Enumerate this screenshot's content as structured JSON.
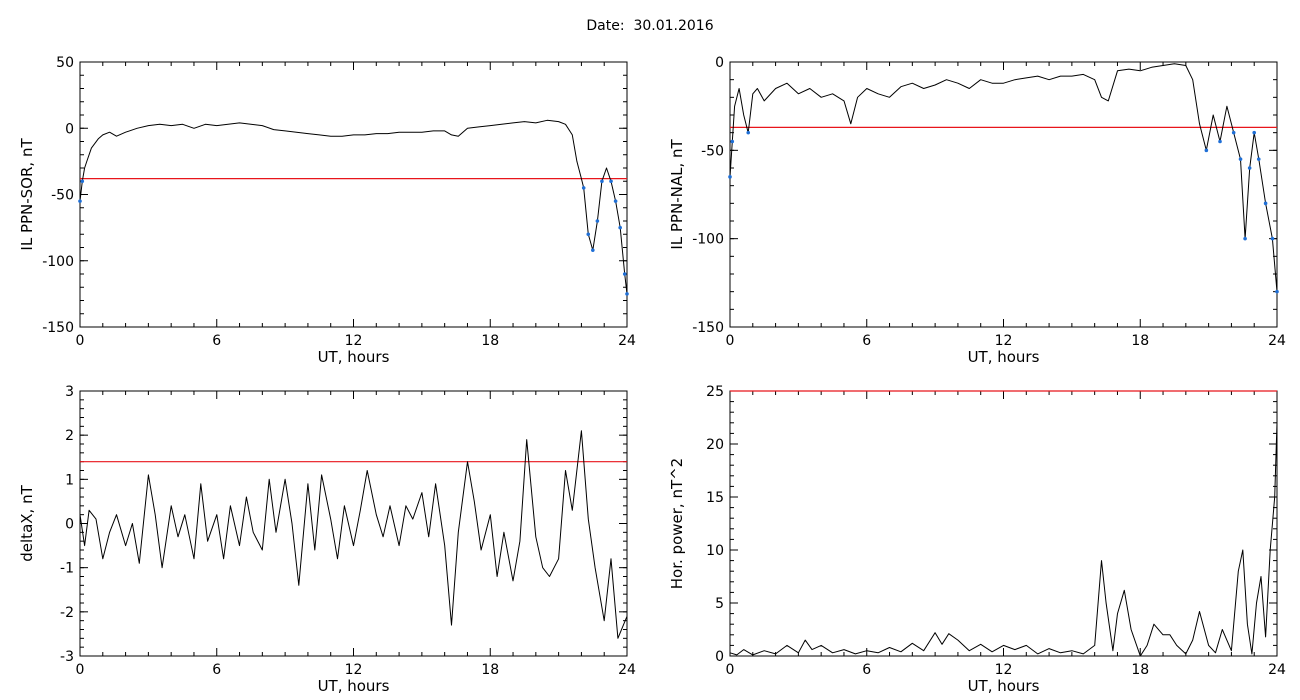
{
  "header": {
    "date_label": "Date:",
    "date_value": "30.01.2016"
  },
  "chart_data": [
    {
      "type": "line",
      "id": "sor",
      "xlabel": "UT, hours",
      "ylabel": "IL PPN-SOR, nT",
      "xlim": [
        0,
        24
      ],
      "ylim": [
        -150,
        50
      ],
      "xticks": [
        0,
        6,
        12,
        18,
        24
      ],
      "yticks": [
        -150,
        -100,
        -50,
        0,
        50
      ],
      "threshold": -38,
      "series": [
        {
          "x": [
            0,
            0.1,
            0.2,
            0.3,
            0.5,
            0.8,
            1,
            1.3,
            1.6,
            2,
            2.5,
            3,
            3.5,
            4,
            4.5,
            5,
            5.5,
            6,
            6.5,
            7,
            7.5,
            8,
            8.5,
            9,
            9.5,
            10,
            10.5,
            11,
            11.5,
            12,
            12.5,
            13,
            13.5,
            14,
            14.5,
            15,
            15.5,
            16,
            16.3,
            16.6,
            17,
            17.5,
            18,
            18.5,
            19,
            19.5,
            20,
            20.5,
            21,
            21.3,
            21.6,
            21.8,
            22,
            22.1,
            22.3,
            22.5,
            22.7,
            22.9,
            23.1,
            23.3,
            23.5,
            23.7,
            23.9,
            24
          ],
          "values": [
            -55,
            -40,
            -30,
            -25,
            -15,
            -8,
            -5,
            -3,
            -6,
            -3,
            0,
            2,
            3,
            2,
            3,
            0,
            3,
            2,
            3,
            4,
            3,
            2,
            -1,
            -2,
            -3,
            -4,
            -5,
            -6,
            -6,
            -5,
            -5,
            -4,
            -4,
            -3,
            -3,
            -3,
            -2,
            -2,
            -5,
            -6,
            0,
            1,
            2,
            3,
            4,
            5,
            4,
            6,
            5,
            3,
            -5,
            -25,
            -38,
            -45,
            -80,
            -92,
            -70,
            -40,
            -30,
            -40,
            -55,
            -75,
            -110,
            -125
          ]
        }
      ]
    },
    {
      "type": "line",
      "id": "nal",
      "xlabel": "UT, hours",
      "ylabel": "IL PPN-NAL, nT",
      "xlim": [
        0,
        24
      ],
      "ylim": [
        -150,
        0
      ],
      "xticks": [
        0,
        6,
        12,
        18,
        24
      ],
      "yticks": [
        -150,
        -100,
        -50,
        0
      ],
      "threshold": -37,
      "series": [
        {
          "x": [
            0,
            0.1,
            0.2,
            0.4,
            0.6,
            0.8,
            1,
            1.2,
            1.5,
            2,
            2.5,
            3,
            3.5,
            4,
            4.5,
            5,
            5.3,
            5.6,
            6,
            6.5,
            7,
            7.5,
            8,
            8.5,
            9,
            9.5,
            10,
            10.5,
            11,
            11.5,
            12,
            12.5,
            13,
            13.5,
            14,
            14.5,
            15,
            15.5,
            16,
            16.3,
            16.6,
            17,
            17.5,
            18,
            18.5,
            19,
            19.5,
            20,
            20.3,
            20.6,
            20.9,
            21.2,
            21.5,
            21.8,
            22.1,
            22.4,
            22.6,
            22.8,
            23,
            23.2,
            23.5,
            23.8,
            24
          ],
          "values": [
            -65,
            -45,
            -25,
            -15,
            -30,
            -40,
            -18,
            -15,
            -22,
            -15,
            -12,
            -18,
            -15,
            -20,
            -18,
            -22,
            -35,
            -20,
            -15,
            -18,
            -20,
            -14,
            -12,
            -15,
            -13,
            -10,
            -12,
            -15,
            -10,
            -12,
            -12,
            -10,
            -9,
            -8,
            -10,
            -8,
            -8,
            -7,
            -10,
            -20,
            -22,
            -5,
            -4,
            -5,
            -3,
            -2,
            -1,
            -2,
            -10,
            -35,
            -50,
            -30,
            -45,
            -25,
            -40,
            -55,
            -100,
            -60,
            -40,
            -55,
            -80,
            -100,
            -130
          ]
        }
      ]
    },
    {
      "type": "line",
      "id": "deltax",
      "xlabel": "UT, hours",
      "ylabel": "deltaX, nT",
      "xlim": [
        0,
        24
      ],
      "ylim": [
        -3,
        3
      ],
      "xticks": [
        0,
        6,
        12,
        18,
        24
      ],
      "yticks": [
        -3,
        -2,
        -1,
        0,
        1,
        2,
        3
      ],
      "threshold": 1.4,
      "series": [
        {
          "x": [
            0,
            0.2,
            0.4,
            0.7,
            1,
            1.3,
            1.6,
            2,
            2.3,
            2.6,
            3,
            3.3,
            3.6,
            4,
            4.3,
            4.6,
            5,
            5.3,
            5.6,
            6,
            6.3,
            6.6,
            7,
            7.3,
            7.6,
            8,
            8.3,
            8.6,
            9,
            9.3,
            9.6,
            10,
            10.3,
            10.6,
            11,
            11.3,
            11.6,
            12,
            12.3,
            12.6,
            13,
            13.3,
            13.6,
            14,
            14.3,
            14.6,
            15,
            15.3,
            15.6,
            16,
            16.3,
            16.6,
            17,
            17.3,
            17.6,
            18,
            18.3,
            18.6,
            19,
            19.3,
            19.6,
            20,
            20.3,
            20.6,
            21,
            21.3,
            21.6,
            22,
            22.3,
            22.6,
            23,
            23.3,
            23.6,
            24
          ],
          "values": [
            0.2,
            -0.5,
            0.3,
            0.1,
            -0.8,
            -0.2,
            0.2,
            -0.5,
            0,
            -0.9,
            1.1,
            0.2,
            -1,
            0.4,
            -0.3,
            0.2,
            -0.8,
            0.9,
            -0.4,
            0.2,
            -0.8,
            0.4,
            -0.5,
            0.6,
            -0.2,
            -0.6,
            1,
            -0.2,
            1,
            0,
            -1.4,
            0.9,
            -0.6,
            1.1,
            0.1,
            -0.8,
            0.4,
            -0.5,
            0.3,
            1.2,
            0.2,
            -0.3,
            0.4,
            -0.5,
            0.4,
            0.1,
            0.7,
            -0.3,
            0.9,
            -0.5,
            -2.3,
            -0.2,
            1.4,
            0.5,
            -0.6,
            0.2,
            -1.2,
            -0.2,
            -1.3,
            -0.4,
            1.9,
            -0.3,
            -1,
            -1.2,
            -0.8,
            1.2,
            0.3,
            2.1,
            0.1,
            -1,
            -2.2,
            -0.8,
            -2.6,
            -2.1
          ]
        }
      ]
    },
    {
      "type": "line",
      "id": "power",
      "xlabel": "UT, hours",
      "ylabel": "Hor. power, nT^2",
      "xlim": [
        0,
        24
      ],
      "ylim": [
        0,
        25
      ],
      "xticks": [
        0,
        6,
        12,
        18,
        24
      ],
      "yticks": [
        0,
        5,
        10,
        15,
        20,
        25
      ],
      "threshold": 25,
      "series": [
        {
          "x": [
            0,
            0.3,
            0.6,
            1,
            1.5,
            2,
            2.5,
            3,
            3.3,
            3.6,
            4,
            4.5,
            5,
            5.5,
            6,
            6.5,
            7,
            7.5,
            8,
            8.5,
            9,
            9.3,
            9.6,
            10,
            10.5,
            11,
            11.5,
            12,
            12.5,
            13,
            13.5,
            14,
            14.5,
            15,
            15.5,
            16,
            16.3,
            16.5,
            16.8,
            17,
            17.3,
            17.6,
            18,
            18.3,
            18.6,
            19,
            19.3,
            19.6,
            20,
            20.3,
            20.6,
            21,
            21.3,
            21.6,
            22,
            22.3,
            22.5,
            22.7,
            22.9,
            23.1,
            23.3,
            23.5,
            23.7,
            23.9,
            24
          ],
          "values": [
            0.3,
            0.1,
            0.6,
            0.1,
            0.5,
            0.2,
            1,
            0.3,
            1.5,
            0.6,
            1,
            0.3,
            0.6,
            0.2,
            0.5,
            0.3,
            0.8,
            0.4,
            1.2,
            0.5,
            2.2,
            1.1,
            2.1,
            1.5,
            0.5,
            1.1,
            0.4,
            1,
            0.6,
            1,
            0.2,
            0.7,
            0.3,
            0.5,
            0.2,
            1,
            9,
            5,
            0.5,
            4,
            6.2,
            2.5,
            0,
            1,
            3,
            2,
            2,
            1,
            0.2,
            1.5,
            4.2,
            1,
            0.3,
            2.5,
            0.5,
            8,
            10,
            3,
            0.2,
            5,
            7.5,
            1.8,
            10,
            15,
            22
          ]
        }
      ]
    }
  ]
}
